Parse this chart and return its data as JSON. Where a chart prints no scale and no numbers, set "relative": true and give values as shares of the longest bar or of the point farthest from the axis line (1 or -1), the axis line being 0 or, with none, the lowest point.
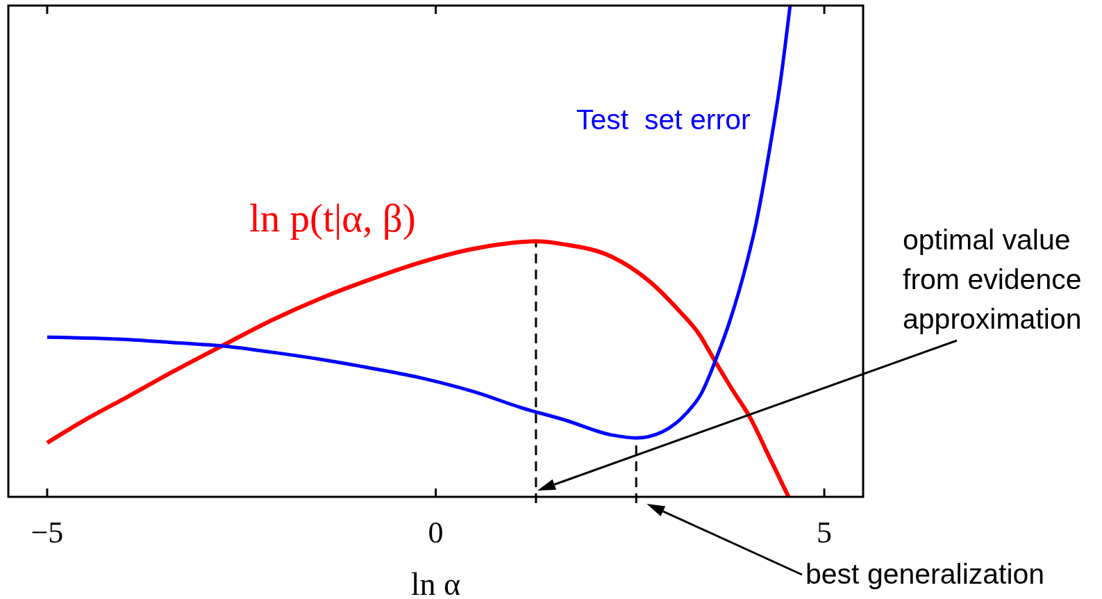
{
  "chart_data": {
    "type": "line",
    "relative": true,
    "xlabel": "ln α",
    "xlim": [
      -5.5,
      5.5
    ],
    "xticks": [
      -5,
      0,
      5
    ],
    "tick_labels": "x",
    "line_style": "solid",
    "series": [
      {
        "name": "ln p(t|α, β)",
        "color": "#ff0000",
        "x": [
          -5,
          -4.53,
          -3.95,
          -3.38,
          -2.73,
          -2.09,
          -1.45,
          -0.8,
          -0.16,
          0.49,
          1.29,
          1.65,
          2.26,
          2.74,
          3.13,
          3.39,
          3.58,
          3.81,
          4.05,
          4.29,
          4.54
        ],
        "values": [
          0.11,
          0.155,
          0.205,
          0.255,
          0.309,
          0.361,
          0.406,
          0.445,
          0.479,
          0.505,
          0.52,
          0.514,
          0.489,
          0.44,
          0.379,
          0.331,
          0.28,
          0.22,
          0.16,
          0.082,
          0
        ]
      },
      {
        "name": "Test  set error",
        "color": "#0000ff",
        "x": [
          -5,
          -3.95,
          -3.38,
          -2.73,
          -2.09,
          -1.45,
          -0.8,
          -0.16,
          0.49,
          1.13,
          1.65,
          2.26,
          2.58,
          2.91,
          3.23,
          3.42,
          3.61,
          3.77,
          3.9,
          4.03,
          4.1,
          4.31,
          4.44,
          4.56
        ],
        "values": [
          0.325,
          0.32,
          0.314,
          0.307,
          0.294,
          0.279,
          0.261,
          0.241,
          0.214,
          0.18,
          0.157,
          0.126,
          0.12,
          0.132,
          0.171,
          0.211,
          0.282,
          0.351,
          0.417,
          0.494,
          0.54,
          0.72,
          0.85,
          1
        ]
      }
    ],
    "ref_lines": [
      {
        "axis": "x",
        "value": 1.29,
        "color": "#000000",
        "line_style": "dashed"
      },
      {
        "axis": "x",
        "value": 2.58,
        "color": "#000000",
        "line_style": "dashed"
      }
    ],
    "annotations": [
      "optimal value\nfrom evidence\napproximation",
      "best generalization"
    ]
  }
}
